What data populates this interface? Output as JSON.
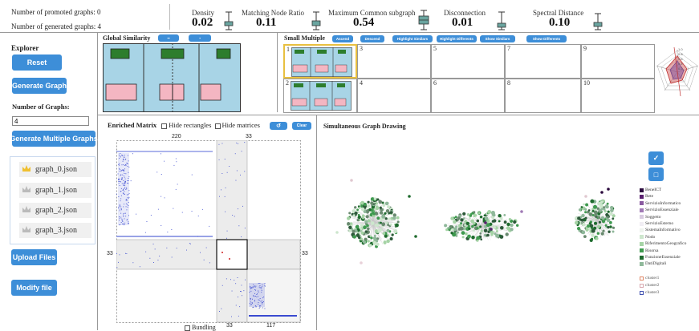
{
  "header": {
    "promoted_label": "Number of promoted graphs: 0",
    "generated_label": "Number of generated graphs: 4",
    "metrics": [
      {
        "label": "Density",
        "value": "0.02"
      },
      {
        "label": "Matching Node Ratio",
        "value": "0.11"
      },
      {
        "label": "Maximum Common subgraph",
        "value": "0.54"
      },
      {
        "label": "Disconnection",
        "value": "0.01"
      },
      {
        "label": "Spectral Distance",
        "value": "0.10"
      }
    ]
  },
  "explorer": {
    "title": "Explorer",
    "reset": "Reset",
    "generate_graph": "Generate Graph",
    "num_graphs_label": "Number of Graphs:",
    "num_graphs_value": "4",
    "generate_multiple": "Generate Multiple Graphs",
    "files": [
      "graph_0.json",
      "graph_1.json",
      "graph_2.json",
      "graph_3.json"
    ],
    "upload": "Upload Files",
    "modify": "Modify file"
  },
  "global_similarity": {
    "title": "Global Similarity",
    "btn1": "▪▪",
    "btn2": "▪"
  },
  "small_multiple": {
    "title": "Small Multiple",
    "buttons": [
      "Ascend",
      "Descend",
      "Highlight Similars",
      "Highlight Differents",
      "Show Similars",
      "Show Differents"
    ],
    "cells": [
      "1",
      "2",
      "3",
      "4",
      "5",
      "6",
      "7",
      "8",
      "9",
      "10"
    ],
    "radar_ticks": [
      "1.0",
      "0.8",
      "0.6",
      "0.4",
      "0.2"
    ]
  },
  "matrix": {
    "title": "Enriched Matrix",
    "hide_rect": "Hide rectangles",
    "hide_mat": "Hide matrices",
    "undo_icon": "↺",
    "clear": "Clear",
    "top_labels": [
      "220",
      "33"
    ],
    "side_left": "33",
    "side_right": "33",
    "bottom_labels": [
      "33",
      "117"
    ],
    "bundling": "Bundling"
  },
  "graph_drawing": {
    "title": "Simultaneous Graph Drawing",
    "legend": [
      {
        "name": "BeneICT",
        "color": "#2b0a3d"
      },
      {
        "name": "Rete",
        "color": "#5a2070"
      },
      {
        "name": "ServizioInformatico",
        "color": "#8a5aa0"
      },
      {
        "name": "ServizioEssenziale",
        "color": "#a07ab5"
      },
      {
        "name": "Soggetto",
        "color": "#d8cbe0"
      },
      {
        "name": "ServizioEsterno",
        "color": "#f1eef4"
      },
      {
        "name": "SistemaInformativo",
        "color": "#eef3ee"
      },
      {
        "name": "Nodo",
        "color": "#cde6cd"
      },
      {
        "name": "RiferimentoGeografico",
        "color": "#a5d3a5"
      },
      {
        "name": "Risorsa",
        "color": "#3f9a4f"
      },
      {
        "name": "FunzioneEssenziale",
        "color": "#1f6b2e"
      },
      {
        "name": "DatiDigitali",
        "color": "#8fb89a"
      }
    ],
    "clusters": [
      {
        "name": "cluster1",
        "color": "#e08a6a"
      },
      {
        "name": "cluster2",
        "color": "#d8a8b0"
      },
      {
        "name": "cluster3",
        "color": "#4050b0"
      }
    ]
  }
}
